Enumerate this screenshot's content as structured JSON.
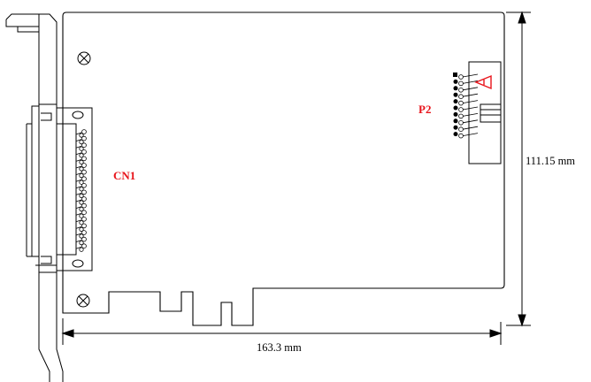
{
  "labels": {
    "cn1": "CN1",
    "p2": "P2"
  },
  "dimensions": {
    "width": "163.3 mm",
    "height": "111.15 mm"
  },
  "connectors": {
    "cn1_pin_rows": 18,
    "p2_pin_rows": 10
  },
  "colors": {
    "outline": "#000000",
    "label": "#e8141b"
  },
  "icons": [
    "mounting-hole-icon",
    "pin1-triangle-icon"
  ]
}
